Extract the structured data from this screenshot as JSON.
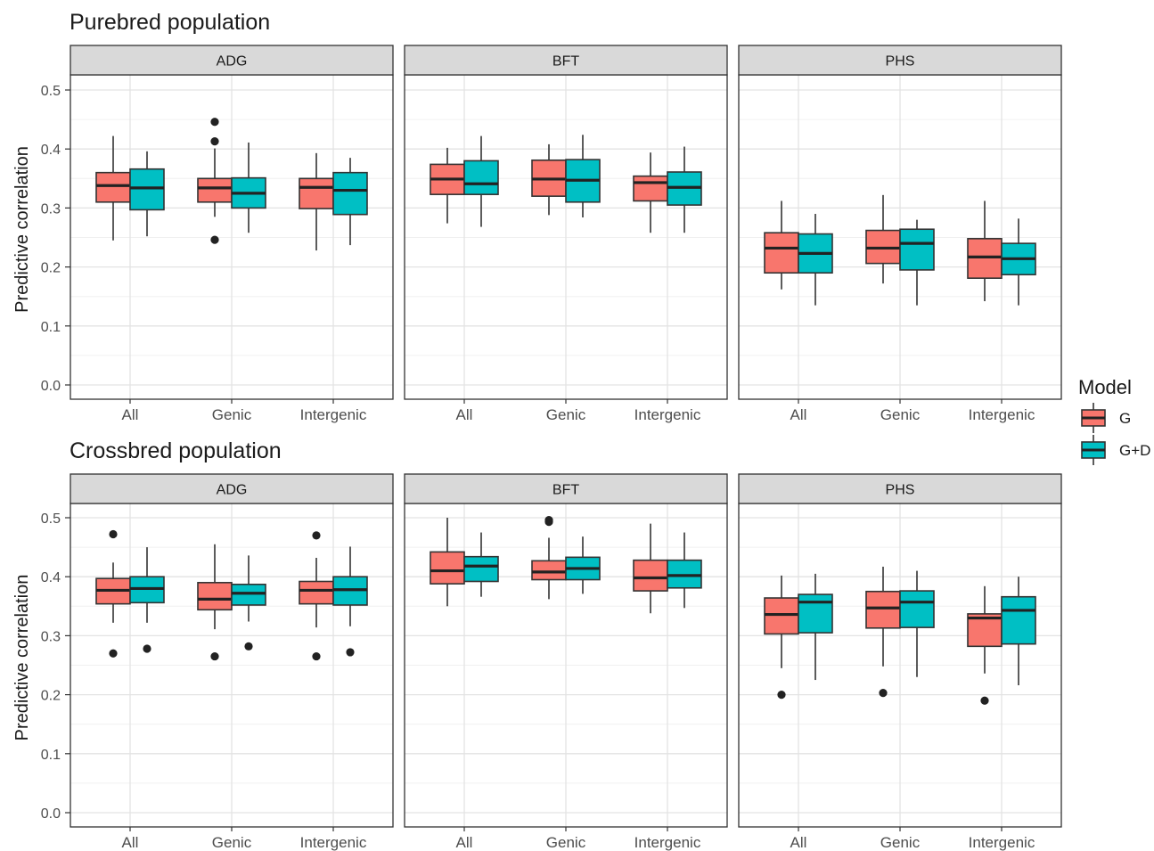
{
  "chart_data": {
    "type": "box",
    "categories": [
      "All",
      "Genic",
      "Intergenic"
    ],
    "ylabel": "Predictive correlation",
    "ylim": [
      0.0,
      0.5
    ],
    "yticks": [
      "0.0",
      "0.1",
      "0.2",
      "0.3",
      "0.4",
      "0.5"
    ],
    "grid": true,
    "legend": {
      "title": "Model",
      "placement": "right",
      "entries": [
        {
          "name": "G",
          "color": "#F8766D"
        },
        {
          "name": "G+D",
          "color": "#00BFC4"
        }
      ]
    },
    "rows": [
      {
        "title": "Purebred population",
        "panels": [
          {
            "strip": "ADG",
            "groups": [
              {
                "category": "All",
                "series": "G",
                "whisker_low": 0.245,
                "q1": 0.31,
                "median": 0.338,
                "q3": 0.36,
                "whisker_high": 0.422,
                "outliers": []
              },
              {
                "category": "All",
                "series": "G+D",
                "whisker_low": 0.252,
                "q1": 0.297,
                "median": 0.334,
                "q3": 0.366,
                "whisker_high": 0.396,
                "outliers": []
              },
              {
                "category": "Genic",
                "series": "G",
                "whisker_low": 0.285,
                "q1": 0.31,
                "median": 0.334,
                "q3": 0.35,
                "whisker_high": 0.401,
                "outliers": [
                  0.446,
                  0.413,
                  0.246
                ]
              },
              {
                "category": "Genic",
                "series": "G+D",
                "whisker_low": 0.258,
                "q1": 0.3,
                "median": 0.325,
                "q3": 0.351,
                "whisker_high": 0.411,
                "outliers": []
              },
              {
                "category": "Intergenic",
                "series": "G",
                "whisker_low": 0.228,
                "q1": 0.299,
                "median": 0.335,
                "q3": 0.35,
                "whisker_high": 0.393,
                "outliers": []
              },
              {
                "category": "Intergenic",
                "series": "G+D",
                "whisker_low": 0.237,
                "q1": 0.289,
                "median": 0.33,
                "q3": 0.36,
                "whisker_high": 0.385,
                "outliers": []
              }
            ]
          },
          {
            "strip": "BFT",
            "groups": [
              {
                "category": "All",
                "series": "G",
                "whisker_low": 0.274,
                "q1": 0.323,
                "median": 0.349,
                "q3": 0.374,
                "whisker_high": 0.402,
                "outliers": []
              },
              {
                "category": "All",
                "series": "G+D",
                "whisker_low": 0.268,
                "q1": 0.323,
                "median": 0.341,
                "q3": 0.38,
                "whisker_high": 0.422,
                "outliers": []
              },
              {
                "category": "Genic",
                "series": "G",
                "whisker_low": 0.288,
                "q1": 0.32,
                "median": 0.349,
                "q3": 0.381,
                "whisker_high": 0.408,
                "outliers": []
              },
              {
                "category": "Genic",
                "series": "G+D",
                "whisker_low": 0.284,
                "q1": 0.31,
                "median": 0.347,
                "q3": 0.382,
                "whisker_high": 0.424,
                "outliers": []
              },
              {
                "category": "Intergenic",
                "series": "G",
                "whisker_low": 0.258,
                "q1": 0.312,
                "median": 0.343,
                "q3": 0.354,
                "whisker_high": 0.394,
                "outliers": []
              },
              {
                "category": "Intergenic",
                "series": "G+D",
                "whisker_low": 0.258,
                "q1": 0.305,
                "median": 0.335,
                "q3": 0.361,
                "whisker_high": 0.404,
                "outliers": []
              }
            ]
          },
          {
            "strip": "PHS",
            "groups": [
              {
                "category": "All",
                "series": "G",
                "whisker_low": 0.162,
                "q1": 0.19,
                "median": 0.232,
                "q3": 0.258,
                "whisker_high": 0.312,
                "outliers": []
              },
              {
                "category": "All",
                "series": "G+D",
                "whisker_low": 0.135,
                "q1": 0.19,
                "median": 0.223,
                "q3": 0.256,
                "whisker_high": 0.29,
                "outliers": []
              },
              {
                "category": "Genic",
                "series": "G",
                "whisker_low": 0.172,
                "q1": 0.206,
                "median": 0.232,
                "q3": 0.262,
                "whisker_high": 0.322,
                "outliers": []
              },
              {
                "category": "Genic",
                "series": "G+D",
                "whisker_low": 0.135,
                "q1": 0.195,
                "median": 0.24,
                "q3": 0.264,
                "whisker_high": 0.28,
                "outliers": []
              },
              {
                "category": "Intergenic",
                "series": "G",
                "whisker_low": 0.142,
                "q1": 0.181,
                "median": 0.217,
                "q3": 0.248,
                "whisker_high": 0.312,
                "outliers": []
              },
              {
                "category": "Intergenic",
                "series": "G+D",
                "whisker_low": 0.135,
                "q1": 0.187,
                "median": 0.214,
                "q3": 0.24,
                "whisker_high": 0.282,
                "outliers": []
              }
            ]
          }
        ]
      },
      {
        "title": "Crossbred population",
        "panels": [
          {
            "strip": "ADG",
            "groups": [
              {
                "category": "All",
                "series": "G",
                "whisker_low": 0.322,
                "q1": 0.354,
                "median": 0.377,
                "q3": 0.397,
                "whisker_high": 0.424,
                "outliers": [
                  0.472,
                  0.27
                ]
              },
              {
                "category": "All",
                "series": "G+D",
                "whisker_low": 0.322,
                "q1": 0.356,
                "median": 0.38,
                "q3": 0.4,
                "whisker_high": 0.45,
                "outliers": [
                  0.278
                ]
              },
              {
                "category": "Genic",
                "series": "G",
                "whisker_low": 0.311,
                "q1": 0.344,
                "median": 0.362,
                "q3": 0.39,
                "whisker_high": 0.455,
                "outliers": [
                  0.265
                ]
              },
              {
                "category": "Genic",
                "series": "G+D",
                "whisker_low": 0.324,
                "q1": 0.352,
                "median": 0.372,
                "q3": 0.387,
                "whisker_high": 0.436,
                "outliers": [
                  0.282
                ]
              },
              {
                "category": "Intergenic",
                "series": "G",
                "whisker_low": 0.314,
                "q1": 0.354,
                "median": 0.377,
                "q3": 0.392,
                "whisker_high": 0.432,
                "outliers": [
                  0.47,
                  0.265
                ]
              },
              {
                "category": "Intergenic",
                "series": "G+D",
                "whisker_low": 0.316,
                "q1": 0.352,
                "median": 0.378,
                "q3": 0.4,
                "whisker_high": 0.451,
                "outliers": [
                  0.272
                ]
              }
            ]
          },
          {
            "strip": "BFT",
            "groups": [
              {
                "category": "All",
                "series": "G",
                "whisker_low": 0.35,
                "q1": 0.388,
                "median": 0.41,
                "q3": 0.442,
                "whisker_high": 0.5,
                "outliers": []
              },
              {
                "category": "All",
                "series": "G+D",
                "whisker_low": 0.366,
                "q1": 0.392,
                "median": 0.418,
                "q3": 0.434,
                "whisker_high": 0.475,
                "outliers": []
              },
              {
                "category": "Genic",
                "series": "G",
                "whisker_low": 0.362,
                "q1": 0.395,
                "median": 0.408,
                "q3": 0.427,
                "whisker_high": 0.466,
                "outliers": [
                  0.496,
                  0.493
                ]
              },
              {
                "category": "Genic",
                "series": "G+D",
                "whisker_low": 0.371,
                "q1": 0.395,
                "median": 0.414,
                "q3": 0.433,
                "whisker_high": 0.468,
                "outliers": []
              },
              {
                "category": "Intergenic",
                "series": "G",
                "whisker_low": 0.338,
                "q1": 0.376,
                "median": 0.398,
                "q3": 0.428,
                "whisker_high": 0.49,
                "outliers": []
              },
              {
                "category": "Intergenic",
                "series": "G+D",
                "whisker_low": 0.347,
                "q1": 0.381,
                "median": 0.402,
                "q3": 0.428,
                "whisker_high": 0.475,
                "outliers": []
              }
            ]
          },
          {
            "strip": "PHS",
            "groups": [
              {
                "category": "All",
                "series": "G",
                "whisker_low": 0.245,
                "q1": 0.303,
                "median": 0.336,
                "q3": 0.364,
                "whisker_high": 0.402,
                "outliers": [
                  0.2
                ]
              },
              {
                "category": "All",
                "series": "G+D",
                "whisker_low": 0.225,
                "q1": 0.305,
                "median": 0.357,
                "q3": 0.37,
                "whisker_high": 0.405,
                "outliers": []
              },
              {
                "category": "Genic",
                "series": "G",
                "whisker_low": 0.248,
                "q1": 0.313,
                "median": 0.347,
                "q3": 0.375,
                "whisker_high": 0.417,
                "outliers": [
                  0.203
                ]
              },
              {
                "category": "Genic",
                "series": "G+D",
                "whisker_low": 0.23,
                "q1": 0.314,
                "median": 0.357,
                "q3": 0.376,
                "whisker_high": 0.41,
                "outliers": []
              },
              {
                "category": "Intergenic",
                "series": "G",
                "whisker_low": 0.236,
                "q1": 0.282,
                "median": 0.33,
                "q3": 0.337,
                "whisker_high": 0.384,
                "outliers": [
                  0.19
                ]
              },
              {
                "category": "Intergenic",
                "series": "G+D",
                "whisker_low": 0.216,
                "q1": 0.286,
                "median": 0.343,
                "q3": 0.366,
                "whisker_high": 0.4,
                "outliers": []
              }
            ]
          }
        ]
      }
    ]
  }
}
